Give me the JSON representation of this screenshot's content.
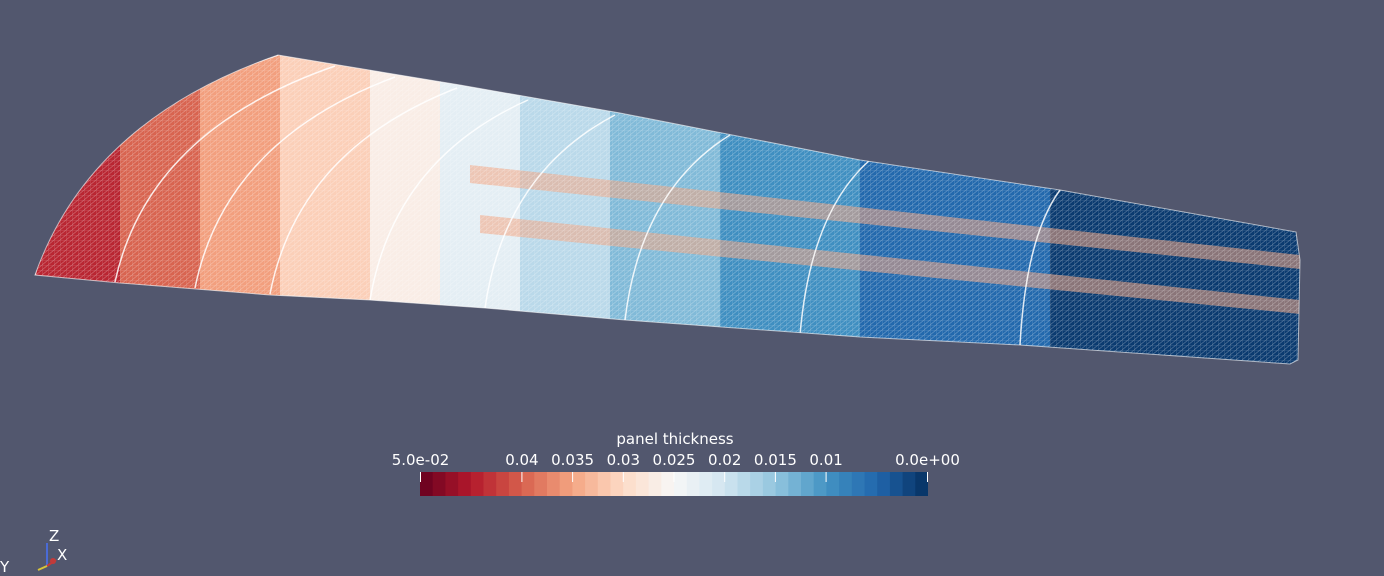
{
  "scalar_bar": {
    "title": "panel thickness",
    "range": [
      0.05,
      0.0
    ],
    "ticks": [
      {
        "label": "5.0e-02",
        "value": 0.05
      },
      {
        "label": "0.04",
        "value": 0.04
      },
      {
        "label": "0.035",
        "value": 0.035
      },
      {
        "label": "0.03",
        "value": 0.03
      },
      {
        "label": "0.025",
        "value": 0.025
      },
      {
        "label": "0.02",
        "value": 0.02
      },
      {
        "label": "0.015",
        "value": 0.015
      },
      {
        "label": "0.01",
        "value": 0.01
      },
      {
        "label": "0.0e+00",
        "value": 0.0
      }
    ],
    "colormap": [
      "#67001f",
      "#b2182b",
      "#d6604d",
      "#f4a582",
      "#fddbc7",
      "#f7f7f7",
      "#d1e5f0",
      "#92c5de",
      "#4393c3",
      "#2166ac",
      "#053061"
    ],
    "num_color_bins": 40
  },
  "orientation_axes": {
    "z_label": "Z",
    "x_label": "X",
    "y_label": "Y"
  },
  "colors": {
    "background": "#52576e",
    "text": "#ffffff"
  }
}
